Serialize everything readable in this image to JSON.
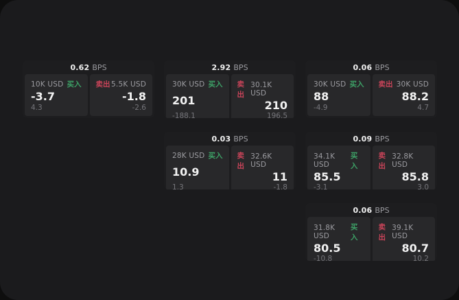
{
  "labels": {
    "bps_unit": "BPS",
    "buy_tag": "买入",
    "sell_tag": "卖出"
  },
  "colors": {
    "page-bg": "#0e0e0e",
    "window-bg": "#1b1b1d",
    "card-bg": "#1d1d1f",
    "panel-bg": "#28282a",
    "text-primary": "#f2f2f2",
    "text-secondary": "#9c9ca1",
    "text-muted": "#76767b",
    "buy-green": "#3da066",
    "sell-red": "#c94459"
  },
  "cards": [
    {
      "bps": "0.62",
      "buy": {
        "amount": "10K USD",
        "price": "-3.7",
        "delta": "4.3"
      },
      "sell": {
        "amount": "5.5K USD",
        "price": "-1.8",
        "delta": "-2.6"
      }
    },
    {
      "bps": "2.92",
      "buy": {
        "amount": "30K USD",
        "price": "201",
        "delta": "-188.1"
      },
      "sell": {
        "amount": "30.1K USD",
        "price": "210",
        "delta": "196.5"
      }
    },
    {
      "bps": "0.06",
      "buy": {
        "amount": "30K USD",
        "price": "88",
        "delta": "-4.9"
      },
      "sell": {
        "amount": "30K USD",
        "price": "88.2",
        "delta": "4.7"
      }
    },
    {
      "bps": "0.03",
      "buy": {
        "amount": "28K USD",
        "price": "10.9",
        "delta": "1.3"
      },
      "sell": {
        "amount": "32.6K USD",
        "price": "11",
        "delta": "-1.8"
      }
    },
    {
      "bps": "0.09",
      "buy": {
        "amount": "34.1K USD",
        "price": "85.5",
        "delta": "-3.1"
      },
      "sell": {
        "amount": "32.8K USD",
        "price": "85.8",
        "delta": "3.0"
      }
    },
    {
      "bps": "0.06",
      "buy": {
        "amount": "31.8K USD",
        "price": "80.5",
        "delta": "-10.8"
      },
      "sell": {
        "amount": "39.1K USD",
        "price": "80.7",
        "delta": "10.2"
      }
    }
  ]
}
